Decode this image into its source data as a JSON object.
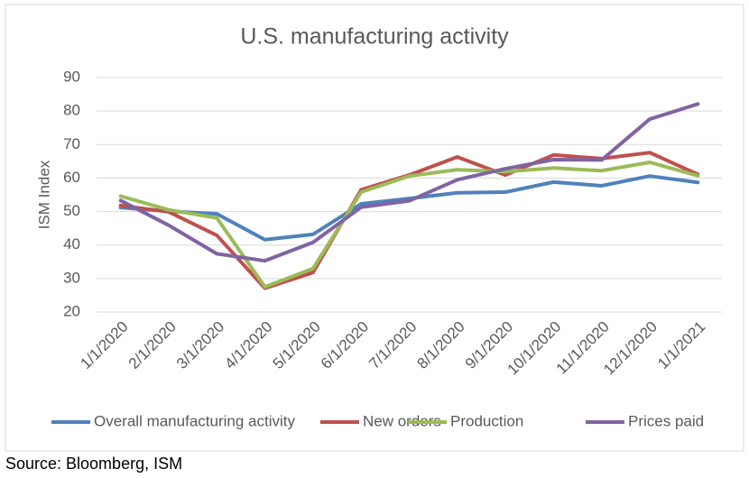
{
  "chart_data": {
    "type": "line",
    "title": "U.S. manufacturing activity",
    "y_label": "ISM Index",
    "source": "Source: Bloomberg, ISM",
    "categories": [
      "1/1/2020",
      "2/1/2020",
      "3/1/2020",
      "4/1/2020",
      "5/1/2020",
      "6/1/2020",
      "7/1/2020",
      "8/1/2020",
      "9/1/2020",
      "10/1/2020",
      "11/1/2020",
      "12/1/2020",
      "1/1/2021"
    ],
    "series": [
      {
        "name": "Overall manufacturing activity",
        "color": "#4f81bd",
        "values": [
          51.2,
          50.1,
          49.3,
          41.6,
          43.2,
          52.3,
          53.9,
          55.6,
          55.8,
          58.8,
          57.7,
          60.6,
          58.7
        ]
      },
      {
        "name": "New orders",
        "color": "#c0504d",
        "values": [
          51.8,
          49.9,
          42.9,
          27.1,
          31.8,
          56.5,
          60.9,
          66.3,
          60.9,
          66.9,
          65.8,
          67.6,
          61.1
        ]
      },
      {
        "name": "Production",
        "color": "#9bbb59",
        "values": [
          54.6,
          50.5,
          48.1,
          27.5,
          33.0,
          55.8,
          60.6,
          62.5,
          61.9,
          63.0,
          62.2,
          64.7,
          60.7
        ]
      },
      {
        "name": "Prices paid",
        "color": "#8064a2",
        "values": [
          53.3,
          45.9,
          37.4,
          35.3,
          40.8,
          51.3,
          53.2,
          59.5,
          62.8,
          65.5,
          65.4,
          77.6,
          82.1
        ]
      }
    ],
    "ylim": [
      20,
      90
    ],
    "yticks": [
      20,
      30,
      40,
      50,
      60,
      70,
      80,
      90
    ],
    "grid": true,
    "legend": "bottom"
  }
}
